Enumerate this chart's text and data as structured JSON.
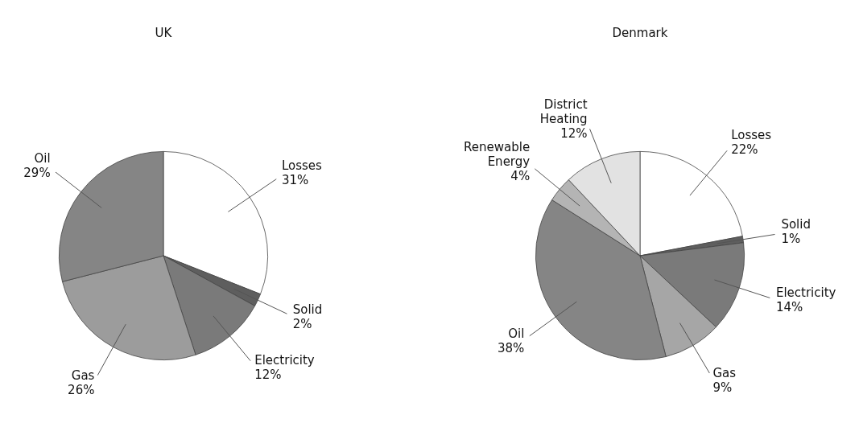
{
  "chart_data": [
    {
      "type": "pie",
      "title": "UK",
      "categories": [
        "Losses",
        "Solid",
        "Electricity",
        "Gas",
        "Oil"
      ],
      "values": [
        31,
        2,
        12,
        26,
        29
      ],
      "value_labels": [
        "31%",
        "2%",
        "12%",
        "26%",
        "29%"
      ],
      "colors": [
        "#ffffff",
        "#5e5e5e",
        "#7a7a7a",
        "#9c9c9c",
        "#858585"
      ],
      "legend": false
    },
    {
      "type": "pie",
      "title": "Denmark",
      "categories": [
        "Losses",
        "Solid",
        "Electricity",
        "Gas",
        "Oil",
        "Renewable Energy",
        "District Heating"
      ],
      "values": [
        22,
        1,
        14,
        9,
        38,
        4,
        12
      ],
      "value_labels": [
        "22%",
        "1%",
        "14%",
        "9%",
        "38%",
        "4%",
        "12%"
      ],
      "colors": [
        "#ffffff",
        "#5e5e5e",
        "#7a7a7a",
        "#a6a6a6",
        "#858585",
        "#b4b4b4",
        "#e2e2e2"
      ],
      "legend": false
    }
  ]
}
